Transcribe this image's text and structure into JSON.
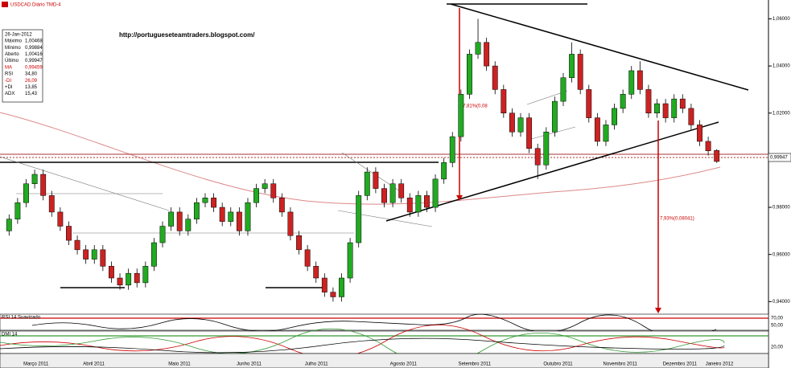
{
  "chart_data": {
    "type": "candlestick",
    "title": "USDCAD Diário TMD-4",
    "url": "http://portugueseteamtraders.blogspot.com/",
    "info": {
      "date": "26-Jan-2012",
      "rows": [
        [
          "Máximo",
          "1,00468"
        ],
        [
          "Mínimo",
          "0,99884"
        ],
        [
          "Aberto",
          "1,00416"
        ],
        [
          "Último",
          "0,99947"
        ],
        [
          "MA",
          "0,99459"
        ],
        [
          "RSI",
          "34,80"
        ],
        [
          "-DI",
          "26,09"
        ],
        [
          "+DI",
          "13,85"
        ],
        [
          "ADX",
          "15,43"
        ]
      ]
    },
    "annotations": [
      "7,81%(0,08",
      "7,93%(0,08041)"
    ],
    "rsi_label": "RSI 14 Suavizado",
    "dmi_label": "DMI 14",
    "rsi_ticks": [
      "70,00",
      "50,00"
    ],
    "dmi_ticks": [
      "20,00"
    ],
    "ylim": [
      0.935,
      1.068
    ],
    "yticks": [
      {
        "value": 1.06,
        "label": "1,06000"
      },
      {
        "value": 1.04,
        "label": "1,04000"
      },
      {
        "value": 1.02,
        "label": "1,02000"
      },
      {
        "value": 0.98,
        "label": "0,98000"
      },
      {
        "value": 0.96,
        "label": "0,96000"
      },
      {
        "value": 0.94,
        "label": "0,94000"
      }
    ],
    "x_labels": [
      "Março 2011",
      "Abril 2011",
      "Maio 2011",
      "Junho 2011",
      "Julho 2011",
      "Agosto 2011",
      "Setembro 2011",
      "Outubro 2011",
      "Novembro 2011",
      "Dezembro 2011",
      "Janeiro 2012"
    ],
    "up_color": "#22aa22",
    "down_color": "#cc2222",
    "ohlc": [
      [
        0.97,
        0.977,
        0.968,
        0.975
      ],
      [
        0.975,
        0.984,
        0.973,
        0.982
      ],
      [
        0.982,
        0.992,
        0.98,
        0.99
      ],
      [
        0.99,
        0.996,
        0.988,
        0.994
      ],
      [
        0.994,
        0.996,
        0.983,
        0.985
      ],
      [
        0.985,
        0.987,
        0.976,
        0.978
      ],
      [
        0.978,
        0.98,
        0.97,
        0.972
      ],
      [
        0.972,
        0.974,
        0.964,
        0.966
      ],
      [
        0.966,
        0.968,
        0.96,
        0.962
      ],
      [
        0.962,
        0.964,
        0.956,
        0.958
      ],
      [
        0.958,
        0.964,
        0.956,
        0.962
      ],
      [
        0.962,
        0.964,
        0.953,
        0.955
      ],
      [
        0.955,
        0.957,
        0.948,
        0.95
      ],
      [
        0.95,
        0.952,
        0.945,
        0.947
      ],
      [
        0.947,
        0.954,
        0.945,
        0.952
      ],
      [
        0.952,
        0.954,
        0.946,
        0.948
      ],
      [
        0.948,
        0.957,
        0.946,
        0.955
      ],
      [
        0.955,
        0.967,
        0.953,
        0.965
      ],
      [
        0.965,
        0.974,
        0.963,
        0.972
      ],
      [
        0.972,
        0.98,
        0.97,
        0.978
      ],
      [
        0.978,
        0.98,
        0.968,
        0.97
      ],
      [
        0.97,
        0.977,
        0.968,
        0.975
      ],
      [
        0.975,
        0.984,
        0.973,
        0.982
      ],
      [
        0.982,
        0.986,
        0.98,
        0.984
      ],
      [
        0.984,
        0.986,
        0.978,
        0.98
      ],
      [
        0.98,
        0.982,
        0.972,
        0.974
      ],
      [
        0.974,
        0.98,
        0.972,
        0.978
      ],
      [
        0.978,
        0.98,
        0.968,
        0.97
      ],
      [
        0.97,
        0.984,
        0.968,
        0.982
      ],
      [
        0.982,
        0.99,
        0.98,
        0.988
      ],
      [
        0.988,
        0.992,
        0.986,
        0.99
      ],
      [
        0.99,
        0.992,
        0.982,
        0.984
      ],
      [
        0.984,
        0.986,
        0.976,
        0.978
      ],
      [
        0.978,
        0.98,
        0.966,
        0.968
      ],
      [
        0.968,
        0.97,
        0.96,
        0.962
      ],
      [
        0.962,
        0.964,
        0.953,
        0.955
      ],
      [
        0.955,
        0.957,
        0.948,
        0.95
      ],
      [
        0.95,
        0.952,
        0.942,
        0.944
      ],
      [
        0.944,
        0.946,
        0.94,
        0.942
      ],
      [
        0.942,
        0.952,
        0.94,
        0.95
      ],
      [
        0.95,
        0.967,
        0.948,
        0.965
      ],
      [
        0.965,
        0.987,
        0.963,
        0.985
      ],
      [
        0.985,
        0.997,
        0.983,
        0.995
      ],
      [
        0.995,
        0.997,
        0.986,
        0.988
      ],
      [
        0.988,
        0.99,
        0.98,
        0.982
      ],
      [
        0.982,
        0.992,
        0.98,
        0.99
      ],
      [
        0.99,
        0.992,
        0.982,
        0.984
      ],
      [
        0.984,
        0.986,
        0.976,
        0.978
      ],
      [
        0.978,
        0.987,
        0.976,
        0.985
      ],
      [
        0.985,
        0.987,
        0.978,
        0.98
      ],
      [
        0.98,
        0.994,
        0.978,
        0.992
      ],
      [
        0.992,
        1.001,
        0.99,
        0.999
      ],
      [
        0.999,
        1.012,
        0.997,
        1.01
      ],
      [
        1.01,
        1.03,
        1.008,
        1.028
      ],
      [
        1.028,
        1.047,
        1.026,
        1.045
      ],
      [
        1.045,
        1.06,
        1.043,
        1.05
      ],
      [
        1.05,
        1.052,
        1.038,
        1.04
      ],
      [
        1.04,
        1.042,
        1.028,
        1.03
      ],
      [
        1.03,
        1.032,
        1.018,
        1.02
      ],
      [
        1.02,
        1.022,
        1.01,
        1.012
      ],
      [
        1.012,
        1.02,
        1.01,
        1.018
      ],
      [
        1.018,
        1.02,
        1.003,
        1.005
      ],
      [
        1.005,
        1.007,
        0.992,
        0.998
      ],
      [
        0.998,
        1.014,
        0.996,
        1.012
      ],
      [
        1.012,
        1.027,
        1.01,
        1.025
      ],
      [
        1.025,
        1.037,
        1.023,
        1.035
      ],
      [
        1.035,
        1.05,
        1.033,
        1.045
      ],
      [
        1.045,
        1.047,
        1.028,
        1.03
      ],
      [
        1.03,
        1.032,
        1.016,
        1.018
      ],
      [
        1.018,
        1.02,
        1.006,
        1.008
      ],
      [
        1.008,
        1.017,
        1.006,
        1.015
      ],
      [
        1.015,
        1.024,
        1.013,
        1.022
      ],
      [
        1.022,
        1.03,
        1.02,
        1.028
      ],
      [
        1.028,
        1.04,
        1.026,
        1.038
      ],
      [
        1.038,
        1.042,
        1.028,
        1.03
      ],
      [
        1.03,
        1.032,
        1.018,
        1.02
      ],
      [
        1.02,
        1.026,
        1.018,
        1.024
      ],
      [
        1.024,
        1.026,
        1.016,
        1.018
      ],
      [
        1.018,
        1.028,
        1.016,
        1.026
      ],
      [
        1.026,
        1.028,
        1.02,
        1.022
      ],
      [
        1.022,
        1.024,
        1.013,
        1.015
      ],
      [
        1.015,
        1.017,
        1.006,
        1.008
      ],
      [
        1.008,
        1.01,
        1.002,
        1.004
      ],
      [
        1.00416,
        1.00468,
        0.99884,
        0.99947
      ]
    ]
  }
}
